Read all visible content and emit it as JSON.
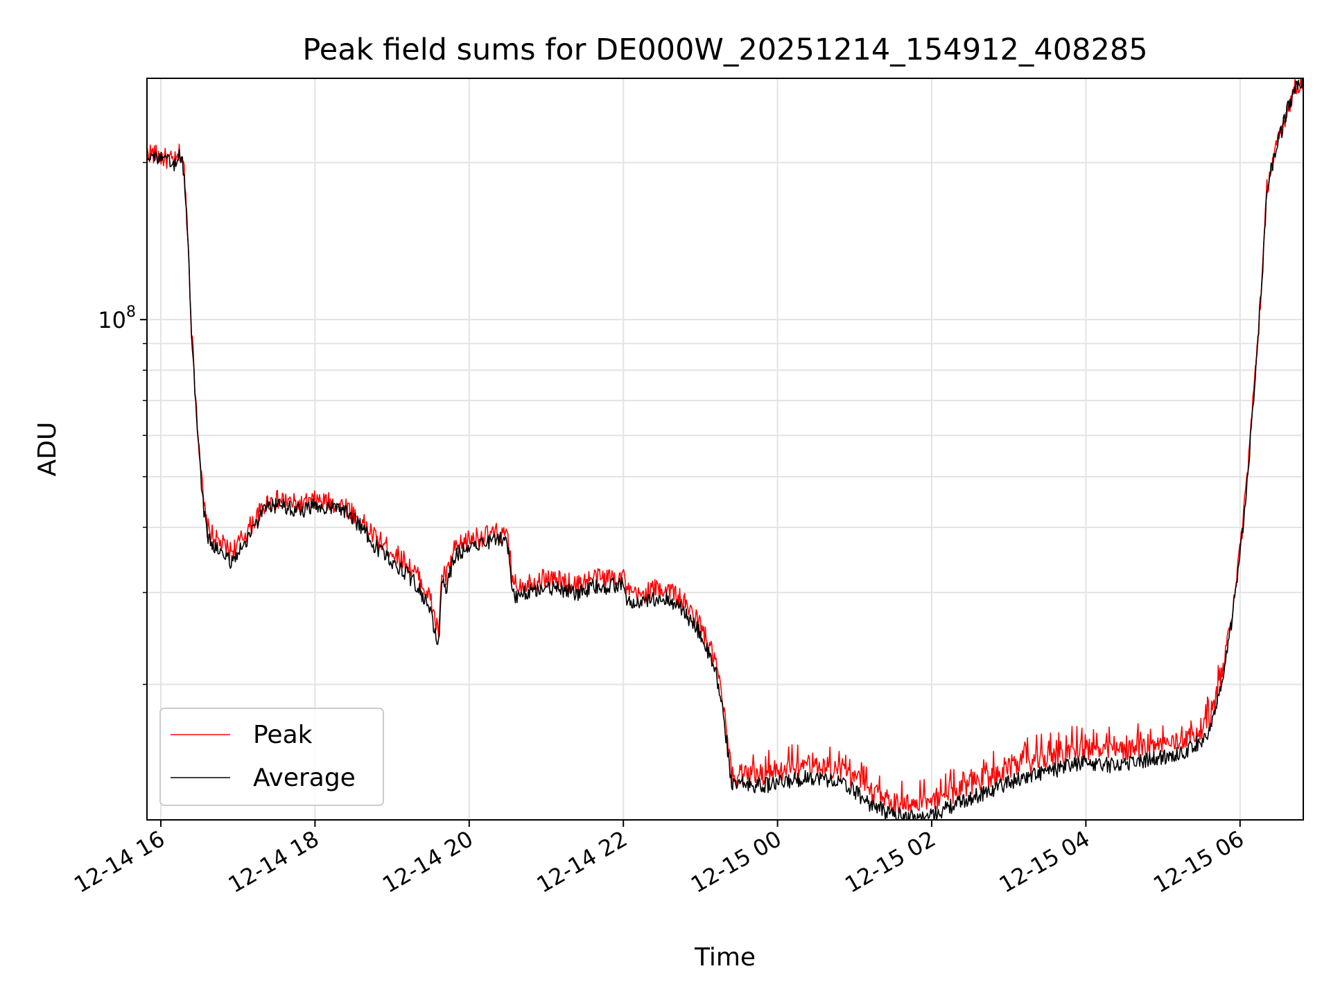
{
  "chart_data": {
    "type": "line",
    "title": "Peak field sums for DE000W_20251214_154912_408285",
    "xlabel": "Time",
    "ylabel": "ADU",
    "y_scale": "log",
    "ylim": [
      11000000,
      290000000
    ],
    "y_major_tick": {
      "value": 100000000,
      "base": "10",
      "exponent": "8"
    },
    "y_minor_ticks": [
      20000000,
      30000000,
      40000000,
      50000000,
      60000000,
      70000000,
      80000000,
      90000000,
      200000000
    ],
    "x_unit": "hours since 2025-12-14 00:00",
    "xlim": [
      15.82,
      30.82
    ],
    "x_ticks": [
      {
        "value": 16,
        "label": "12-14 16"
      },
      {
        "value": 18,
        "label": "12-14 18"
      },
      {
        "value": 20,
        "label": "12-14 20"
      },
      {
        "value": 22,
        "label": "12-14 22"
      },
      {
        "value": 24,
        "label": "12-15 00"
      },
      {
        "value": 26,
        "label": "12-15 02"
      },
      {
        "value": 28,
        "label": "12-15 04"
      },
      {
        "value": 30,
        "label": "12-15 06"
      }
    ],
    "grid": true,
    "legend_position": "lower-left",
    "series": [
      {
        "name": "Peak",
        "color": "#ff0000",
        "noise": 0.02,
        "x": [
          15.82,
          16.0,
          16.2,
          16.25,
          16.3,
          16.35,
          16.4,
          16.45,
          16.5,
          16.55,
          16.6,
          16.7,
          16.8,
          16.9,
          17.0,
          17.2,
          17.4,
          17.6,
          17.8,
          18.0,
          18.2,
          18.4,
          18.6,
          18.8,
          19.0,
          19.2,
          19.35,
          19.5,
          19.55,
          19.6,
          19.65,
          19.7,
          19.8,
          19.9,
          20.0,
          20.2,
          20.4,
          20.5,
          20.55,
          20.6,
          20.8,
          21.0,
          21.2,
          21.4,
          21.6,
          21.8,
          22.0,
          22.05,
          22.2,
          22.4,
          22.6,
          22.8,
          23.0,
          23.2,
          23.3,
          23.4,
          23.45,
          23.5,
          23.8,
          24.0,
          24.2,
          24.4,
          24.6,
          24.8,
          25.0,
          25.2,
          25.4,
          25.6,
          25.8,
          26.0,
          26.2,
          26.5,
          26.8,
          27.0,
          27.3,
          27.6,
          27.8,
          28.0,
          28.3,
          28.6,
          28.9,
          29.2,
          29.4,
          29.6,
          29.7,
          29.8,
          29.9,
          30.0,
          30.1,
          30.2,
          30.3,
          30.35,
          30.4,
          30.5,
          30.6,
          30.7,
          30.82
        ],
        "y": [
          210000000,
          205000000,
          200000000,
          210000000,
          195000000,
          145000000,
          95000000,
          72000000,
          56000000,
          45000000,
          40000000,
          38000000,
          37000000,
          36000000,
          37000000,
          41000000,
          45000000,
          45000000,
          44000000,
          45000000,
          44500000,
          44000000,
          41000000,
          38000000,
          36000000,
          34000000,
          32000000,
          29000000,
          27000000,
          25000000,
          33000000,
          32000000,
          36000000,
          37000000,
          38000000,
          38500000,
          39000000,
          38000000,
          33000000,
          31000000,
          31500000,
          32000000,
          31500000,
          31000000,
          32000000,
          32000000,
          32500000,
          30000000,
          29500000,
          30500000,
          30500000,
          28500000,
          26000000,
          22000000,
          18000000,
          13500000,
          13200000,
          13500000,
          13400000,
          13500000,
          13800000,
          14000000,
          13900000,
          13700000,
          13200000,
          12400000,
          12000000,
          11800000,
          11700000,
          11800000,
          12200000,
          12800000,
          13300000,
          13800000,
          14200000,
          14500000,
          14800000,
          15000000,
          14800000,
          15000000,
          15200000,
          15500000,
          16000000,
          17000000,
          19000000,
          22000000,
          28000000,
          36000000,
          52000000,
          80000000,
          130000000,
          180000000,
          195000000,
          220000000,
          250000000,
          275000000,
          290000000
        ]
      },
      {
        "name": "Average",
        "color": "#000000",
        "noise": 0.015,
        "x": [
          15.82,
          16.0,
          16.2,
          16.25,
          16.3,
          16.35,
          16.4,
          16.45,
          16.5,
          16.55,
          16.6,
          16.7,
          16.8,
          16.9,
          17.0,
          17.2,
          17.4,
          17.6,
          17.8,
          18.0,
          18.2,
          18.4,
          18.6,
          18.8,
          19.0,
          19.2,
          19.35,
          19.5,
          19.55,
          19.6,
          19.65,
          19.7,
          19.8,
          19.9,
          20.0,
          20.2,
          20.4,
          20.5,
          20.55,
          20.6,
          20.8,
          21.0,
          21.2,
          21.4,
          21.6,
          21.8,
          22.0,
          22.05,
          22.2,
          22.4,
          22.6,
          22.8,
          23.0,
          23.2,
          23.3,
          23.4,
          23.45,
          23.5,
          23.8,
          24.0,
          24.2,
          24.4,
          24.6,
          24.8,
          25.0,
          25.2,
          25.4,
          25.6,
          25.8,
          26.0,
          26.2,
          26.5,
          26.8,
          27.0,
          27.3,
          27.6,
          27.8,
          28.0,
          28.3,
          28.6,
          28.9,
          29.2,
          29.4,
          29.6,
          29.7,
          29.8,
          29.9,
          30.0,
          30.1,
          30.2,
          30.3,
          30.35,
          30.4,
          30.5,
          30.6,
          30.7,
          30.82
        ],
        "y": [
          208000000,
          203000000,
          198000000,
          208000000,
          193000000,
          143000000,
          93000000,
          70000000,
          55000000,
          44000000,
          38500000,
          36500000,
          35500000,
          34500000,
          35500000,
          40000000,
          44000000,
          44000000,
          43000000,
          44000000,
          43500000,
          43000000,
          40000000,
          36500000,
          34500000,
          32500000,
          30500000,
          27500000,
          25500000,
          23500000,
          31500000,
          30500000,
          35000000,
          36000000,
          37000000,
          37500000,
          38000000,
          37000000,
          31500000,
          29500000,
          30200000,
          30800000,
          30300000,
          29800000,
          30700000,
          30800000,
          31200000,
          28700000,
          28300000,
          29200000,
          29200000,
          27300000,
          25000000,
          21000000,
          17500000,
          13000000,
          12700000,
          12900000,
          12800000,
          12900000,
          13100000,
          13300000,
          13200000,
          13000000,
          12500000,
          11800000,
          11400000,
          11200000,
          11100000,
          11200000,
          11600000,
          12100000,
          12600000,
          13000000,
          13400000,
          13700000,
          14000000,
          14200000,
          14000000,
          14200000,
          14400000,
          14700000,
          15200000,
          16200000,
          18200000,
          21200000,
          27000000,
          35000000,
          51000000,
          79000000,
          129000000,
          179000000,
          194000000,
          219000000,
          249000000,
          274000000,
          289000000
        ]
      }
    ]
  }
}
